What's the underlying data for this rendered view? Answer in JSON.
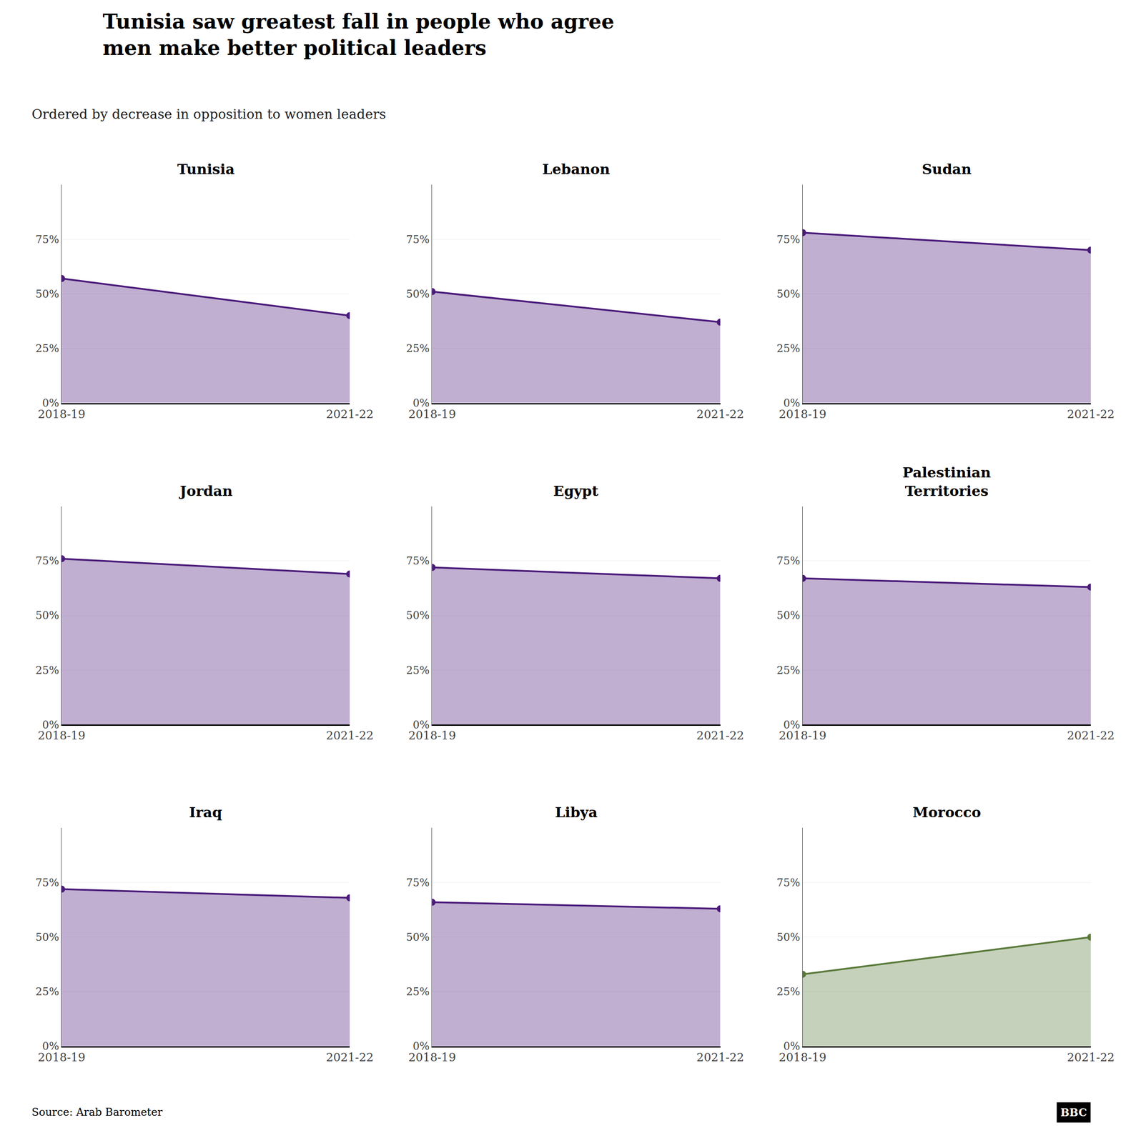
{
  "title": "Tunisia saw greatest fall in people who agree\nmen make better political leaders",
  "subtitle": "Ordered by decrease in opposition to women leaders",
  "annotations": [
    "Source: Arab Barometer",
    "BBC"
  ],
  "chart_data": [
    {
      "type": "area",
      "title": "Tunisia",
      "categories": [
        "2018-19",
        "2021-22"
      ],
      "values": [
        57,
        40
      ],
      "color": "#4a1a7a",
      "ylim": [
        0,
        100
      ],
      "yticks": [
        {
          "value": 0,
          "label": "0%"
        },
        {
          "value": 25,
          "label": "25%"
        },
        {
          "value": 50,
          "label": "50%"
        },
        {
          "value": 75,
          "label": "75%"
        }
      ],
      "grid": true
    },
    {
      "type": "area",
      "title": "Lebanon",
      "categories": [
        "2018-19",
        "2021-22"
      ],
      "values": [
        51,
        37
      ],
      "color": "#4a1a7a",
      "ylim": [
        0,
        100
      ],
      "yticks": [
        {
          "value": 0,
          "label": "0%"
        },
        {
          "value": 25,
          "label": "25%"
        },
        {
          "value": 50,
          "label": "50%"
        },
        {
          "value": 75,
          "label": "75%"
        }
      ],
      "grid": true
    },
    {
      "type": "area",
      "title": "Sudan",
      "categories": [
        "2018-19",
        "2021-22"
      ],
      "values": [
        78,
        70
      ],
      "color": "#4a1a7a",
      "ylim": [
        0,
        100
      ],
      "yticks": [
        {
          "value": 0,
          "label": "0%"
        },
        {
          "value": 25,
          "label": "25%"
        },
        {
          "value": 50,
          "label": "50%"
        },
        {
          "value": 75,
          "label": "75%"
        }
      ],
      "grid": true
    },
    {
      "type": "area",
      "title": "Jordan",
      "categories": [
        "2018-19",
        "2021-22"
      ],
      "values": [
        76,
        69
      ],
      "color": "#4a1a7a",
      "ylim": [
        0,
        100
      ],
      "yticks": [
        {
          "value": 0,
          "label": "0%"
        },
        {
          "value": 25,
          "label": "25%"
        },
        {
          "value": 50,
          "label": "50%"
        },
        {
          "value": 75,
          "label": "75%"
        }
      ],
      "grid": true
    },
    {
      "type": "area",
      "title": "Egypt",
      "categories": [
        "2018-19",
        "2021-22"
      ],
      "values": [
        72,
        67
      ],
      "color": "#4a1a7a",
      "ylim": [
        0,
        100
      ],
      "yticks": [
        {
          "value": 0,
          "label": "0%"
        },
        {
          "value": 25,
          "label": "25%"
        },
        {
          "value": 50,
          "label": "50%"
        },
        {
          "value": 75,
          "label": "75%"
        }
      ],
      "grid": true
    },
    {
      "type": "area",
      "title": "Palestinian\nTerritories",
      "categories": [
        "2018-19",
        "2021-22"
      ],
      "values": [
        67,
        63
      ],
      "color": "#4a1a7a",
      "ylim": [
        0,
        100
      ],
      "yticks": [
        {
          "value": 0,
          "label": "0%"
        },
        {
          "value": 25,
          "label": "25%"
        },
        {
          "value": 50,
          "label": "50%"
        },
        {
          "value": 75,
          "label": "75%"
        }
      ],
      "grid": true
    },
    {
      "type": "area",
      "title": "Iraq",
      "categories": [
        "2018-19",
        "2021-22"
      ],
      "values": [
        72,
        68
      ],
      "color": "#4a1a7a",
      "ylim": [
        0,
        100
      ],
      "yticks": [
        {
          "value": 0,
          "label": "0%"
        },
        {
          "value": 25,
          "label": "25%"
        },
        {
          "value": 50,
          "label": "50%"
        },
        {
          "value": 75,
          "label": "75%"
        }
      ],
      "grid": true
    },
    {
      "type": "area",
      "title": "Libya",
      "categories": [
        "2018-19",
        "2021-22"
      ],
      "values": [
        66,
        63
      ],
      "color": "#4a1a7a",
      "ylim": [
        0,
        100
      ],
      "yticks": [
        {
          "value": 0,
          "label": "0%"
        },
        {
          "value": 25,
          "label": "25%"
        },
        {
          "value": 50,
          "label": "50%"
        },
        {
          "value": 75,
          "label": "75%"
        }
      ],
      "grid": true
    },
    {
      "type": "area",
      "title": "Morocco",
      "categories": [
        "2018-19",
        "2021-22"
      ],
      "values": [
        33,
        50
      ],
      "color": "#5a7a3a",
      "ylim": [
        0,
        100
      ],
      "yticks": [
        {
          "value": 0,
          "label": "0%"
        },
        {
          "value": 25,
          "label": "25%"
        },
        {
          "value": 50,
          "label": "50%"
        },
        {
          "value": 75,
          "label": "75%"
        }
      ],
      "grid": true
    }
  ]
}
